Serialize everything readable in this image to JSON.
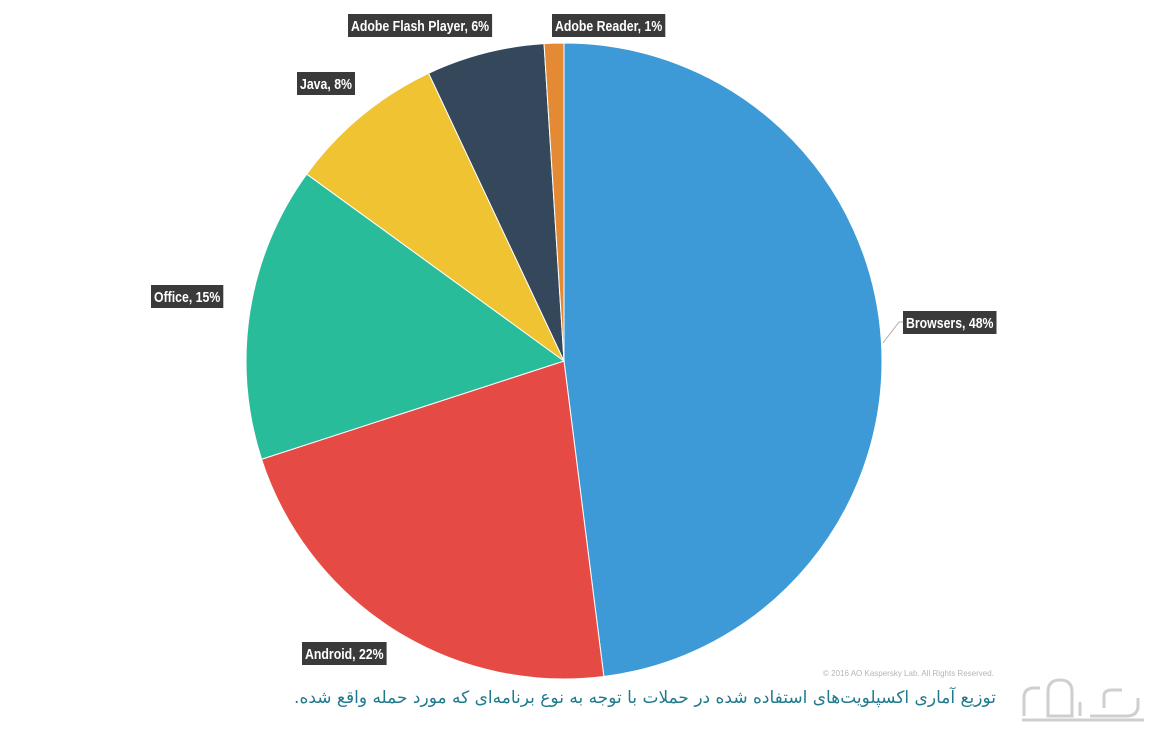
{
  "chart_data": {
    "type": "pie",
    "title": "",
    "slices": [
      {
        "label": "Browsers, 48%",
        "value": 48,
        "color": "#3d9ad7"
      },
      {
        "label": "Android, 22%",
        "value": 22,
        "color": "#e54b44"
      },
      {
        "label": "Office, 15%",
        "value": 15,
        "color": "#28bc9b"
      },
      {
        "label": "Java, 8%",
        "value": 8,
        "color": "#efc331"
      },
      {
        "label": "Adobe Flash Player, 6%",
        "value": 6,
        "color": "#34475b"
      },
      {
        "label": "Adobe Reader, 1%",
        "value": 1,
        "color": "#e58a34"
      }
    ],
    "legend": "none",
    "grid": false
  },
  "copyright": "© 2016 AO Kaspersky Lab. All Rights Reserved.",
  "caption": "توزیع آماری اکسپلویت‌های استفاده شده در حملات با توجه به نوع برنامه‌ای که مورد حمله واقع شده."
}
